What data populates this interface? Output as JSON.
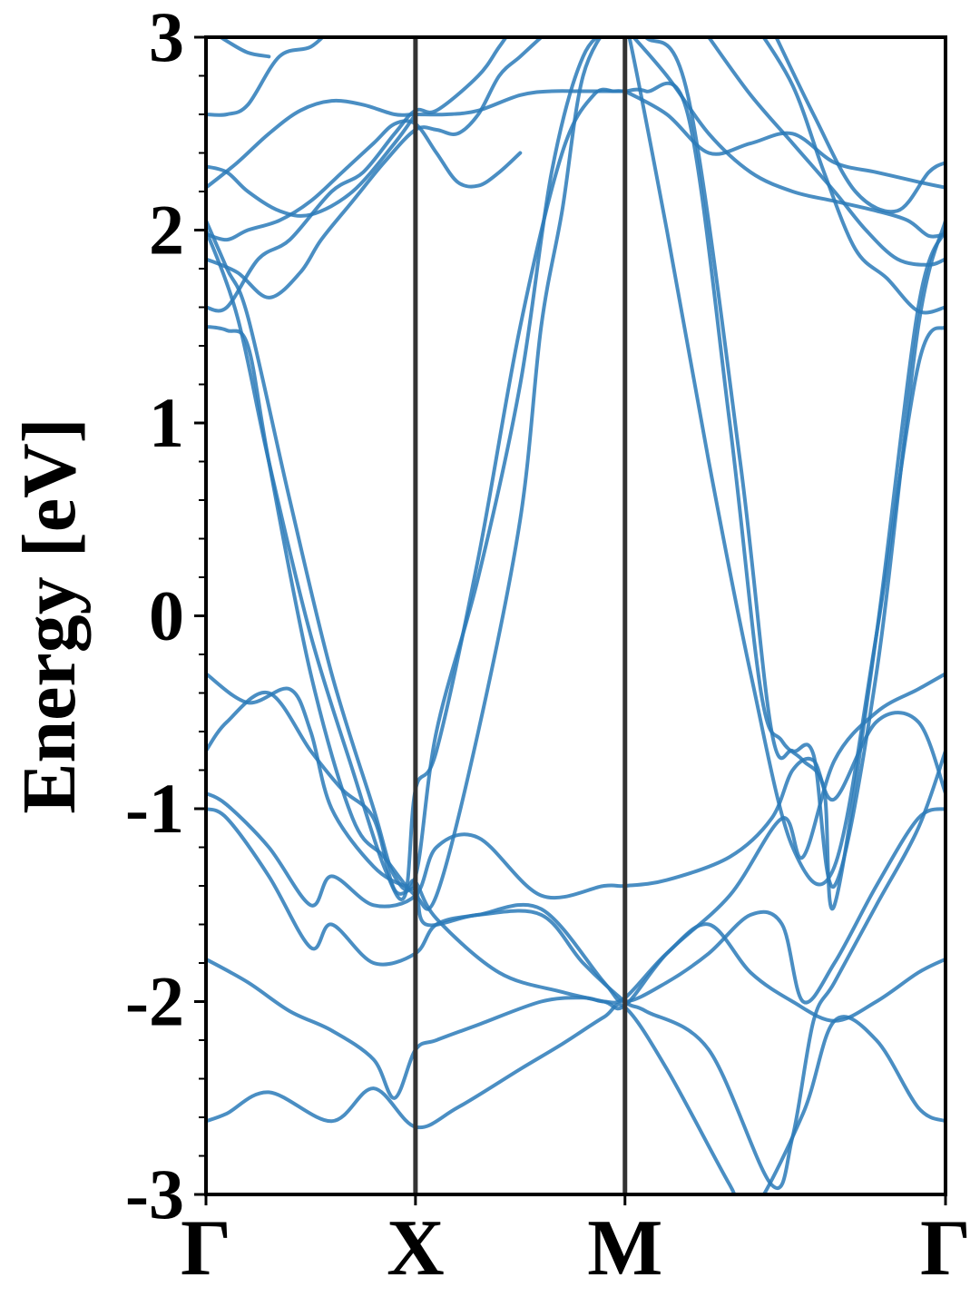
{
  "chart_data": {
    "type": "line",
    "title": "",
    "xlabel": "",
    "ylabel": "Energy [eV]",
    "ylim": [
      -3,
      3
    ],
    "xlim": [
      0,
      3.53
    ],
    "yticks": [
      -3,
      -2,
      -1,
      0,
      1,
      2,
      3
    ],
    "ytick_labels": [
      "-3",
      "-2",
      "-1",
      "0",
      "1",
      "2",
      "3"
    ],
    "minor_ytick_step": 0.2,
    "kpoints": [
      {
        "label": "Γ",
        "x": 0
      },
      {
        "label": "X",
        "x": 1.0
      },
      {
        "label": "M",
        "x": 2.0
      },
      {
        "label": "Γ",
        "x": 3.53
      }
    ],
    "grid": false,
    "legend": "none",
    "colors": {
      "bands": "#2a7ab8",
      "kline": "#333333",
      "axis": "#000000"
    },
    "series": [
      {
        "x": [
          0,
          0.1,
          0.3,
          0.6,
          0.8,
          1.0,
          1.2,
          1.5,
          1.7,
          1.9,
          2.0,
          2.2,
          2.5,
          2.6,
          2.85,
          3.0,
          3.2,
          3.4,
          3.53
        ],
        "y": [
          -2.62,
          -2.58,
          -2.47,
          -2.62,
          -2.45,
          -2.65,
          -2.55,
          -2.35,
          -2.22,
          -2.08,
          -2.03,
          -2.35,
          -2.95,
          -3.1,
          -2.58,
          -2.1,
          -2.2,
          -2.55,
          -2.62
        ]
      },
      {
        "x": [
          0,
          0.2,
          0.4,
          0.6,
          0.8,
          0.9,
          1.0,
          1.1,
          1.3,
          1.6,
          1.8,
          1.9,
          2.0,
          2.2,
          2.4,
          2.6,
          2.8,
          3.0,
          3.2,
          3.4,
          3.53
        ],
        "y": [
          -1.78,
          -1.9,
          -2.05,
          -2.15,
          -2.3,
          -2.5,
          -2.25,
          -2.2,
          -2.12,
          -2.0,
          -1.98,
          -2.0,
          -1.98,
          -1.75,
          -1.6,
          -1.85,
          -2.0,
          -2.1,
          -2.0,
          -1.85,
          -1.78
        ]
      },
      {
        "x": [
          0,
          0.1,
          0.3,
          0.5,
          0.6,
          0.8,
          1.0,
          1.1,
          1.3,
          1.6,
          1.9,
          2.0,
          2.2,
          2.4,
          2.6,
          2.75,
          2.85,
          3.0,
          3.2,
          3.4,
          3.53
        ],
        "y": [
          -1.0,
          -1.05,
          -1.35,
          -1.72,
          -1.6,
          -1.8,
          -1.75,
          -1.6,
          -1.55,
          -1.52,
          -1.9,
          -2.0,
          -1.9,
          -1.75,
          -1.55,
          -1.6,
          -2.0,
          -1.8,
          -1.4,
          -1.05,
          -1.0
        ]
      },
      {
        "x": [
          0,
          0.1,
          0.3,
          0.5,
          0.6,
          0.8,
          1.0,
          1.1,
          1.3,
          1.6,
          1.9,
          2.0,
          2.2,
          2.5,
          2.7,
          2.8,
          2.9,
          3.0,
          3.2,
          3.4,
          3.53
        ],
        "y": [
          -0.92,
          -0.98,
          -1.2,
          -1.5,
          -1.35,
          -1.5,
          -1.45,
          -1.2,
          -1.15,
          -1.45,
          -1.4,
          -1.4,
          -1.37,
          -1.25,
          -1.05,
          -0.8,
          -0.75,
          -0.95,
          -0.55,
          -0.55,
          -0.92
        ]
      },
      {
        "x": [
          0,
          0.2,
          0.4,
          0.5,
          0.6,
          0.8,
          0.95,
          1.0,
          1.1,
          1.4,
          1.7,
          1.9,
          2.0,
          2.2,
          2.5,
          2.75,
          2.85,
          3.0,
          3.2,
          3.4,
          3.53
        ],
        "y": [
          -0.3,
          -0.45,
          -0.38,
          -0.6,
          -1.0,
          -1.3,
          -1.4,
          -1.38,
          -1.57,
          -1.85,
          -1.95,
          -2.0,
          -2.02,
          -1.75,
          -1.45,
          -1.05,
          -1.25,
          -0.75,
          -0.5,
          -0.38,
          -0.3
        ]
      },
      {
        "x": [
          0,
          0.1,
          0.3,
          0.5,
          0.65,
          0.8,
          0.9,
          1.0,
          1.05,
          1.3,
          1.6,
          1.8,
          2.0,
          2.1,
          2.4,
          2.7,
          2.8,
          2.9,
          3.0,
          3.2,
          3.4,
          3.53
        ],
        "y": [
          -0.7,
          -0.55,
          -0.4,
          -0.7,
          -0.9,
          -1.05,
          -1.42,
          -1.42,
          -1.6,
          -1.55,
          -1.55,
          -1.8,
          -2.0,
          -2.05,
          -2.25,
          -2.95,
          -2.7,
          -2.1,
          -1.9,
          -1.5,
          -1.1,
          -0.7
        ]
      },
      {
        "x": [
          0,
          0.15,
          0.3,
          0.5,
          0.7,
          0.85,
          0.95,
          1.0,
          1.1,
          1.3,
          1.5,
          1.7,
          1.85,
          1.95,
          2.0,
          2.1,
          2.3,
          2.5,
          2.65,
          2.75,
          2.85,
          2.95,
          3.0,
          3.2,
          3.4,
          3.53
        ],
        "y": [
          2.0,
          1.55,
          0.8,
          -0.1,
          -0.8,
          -1.3,
          -1.45,
          -0.9,
          -0.7,
          0.3,
          1.5,
          2.4,
          2.7,
          2.72,
          2.72,
          2.72,
          2.6,
          1.0,
          -0.4,
          -0.65,
          -0.75,
          -0.9,
          -1.5,
          -0.1,
          1.6,
          2.0
        ]
      },
      {
        "x": [
          0,
          0.1,
          0.2,
          0.4,
          0.6,
          0.8,
          0.9,
          1.0,
          1.1,
          1.3,
          1.5,
          1.65,
          1.8,
          1.95,
          2.0,
          2.1,
          2.3,
          2.55,
          2.7,
          2.8,
          2.9,
          3.0,
          3.2,
          3.4,
          3.53
        ],
        "y": [
          2.05,
          1.8,
          1.55,
          0.6,
          -0.3,
          -1.0,
          -1.35,
          -1.35,
          -0.6,
          0.2,
          1.2,
          2.3,
          2.9,
          3.05,
          3.05,
          3.0,
          2.7,
          0.8,
          -0.6,
          -0.7,
          -0.72,
          -1.4,
          -0.3,
          1.5,
          2.05
        ]
      },
      {
        "x": [
          0,
          0.1,
          0.2,
          0.3,
          0.5,
          0.7,
          0.85,
          1.0,
          1.1,
          1.3,
          1.5,
          1.6,
          1.7,
          1.8,
          1.95,
          2.0,
          2.2,
          2.4,
          2.6,
          2.8,
          3.0,
          3.2,
          3.4,
          3.53
        ],
        "y": [
          1.5,
          1.48,
          1.4,
          0.8,
          -0.3,
          -1.05,
          -1.25,
          -1.45,
          -1.45,
          -0.6,
          0.5,
          1.5,
          2.1,
          2.8,
          3.1,
          3.1,
          2.0,
          0.8,
          -0.3,
          -1.2,
          -1.3,
          -0.1,
          1.3,
          1.5
        ]
      },
      {
        "x": [
          0,
          0.1,
          0.25,
          0.4,
          0.6,
          0.75,
          0.9,
          1.0,
          1.1,
          1.3,
          1.4,
          1.5,
          1.6,
          1.7
        ],
        "y": [
          1.6,
          1.6,
          1.85,
          1.95,
          2.2,
          2.3,
          2.5,
          2.62,
          2.62,
          2.8,
          2.95,
          3.1,
          3.2,
          3.3
        ]
      },
      {
        "x": [
          0,
          0.15,
          0.3,
          0.45,
          0.55,
          0.7,
          0.85,
          1.0,
          1.1,
          1.2,
          1.3,
          1.4,
          1.5,
          1.6,
          1.7
        ],
        "y": [
          1.85,
          1.78,
          1.65,
          1.78,
          1.95,
          2.15,
          2.35,
          2.52,
          2.52,
          2.5,
          2.6,
          2.8,
          2.9,
          3.0,
          3.1
        ]
      },
      {
        "x": [
          0,
          0.1,
          0.2,
          0.35,
          0.5,
          0.65,
          0.8,
          0.9,
          1.0,
          1.1,
          1.2,
          1.3,
          1.4,
          1.5
        ],
        "y": [
          1.98,
          1.95,
          2.0,
          2.05,
          2.15,
          2.3,
          2.45,
          2.55,
          2.55,
          2.4,
          2.25,
          2.23,
          2.3,
          2.4
        ]
      },
      {
        "x": [
          0,
          0.15,
          0.3,
          0.45,
          0.6,
          0.75,
          0.9,
          1.0,
          1.15,
          1.3,
          1.5,
          1.65,
          1.8,
          2.0
        ],
        "y": [
          2.22,
          2.35,
          2.5,
          2.62,
          2.67,
          2.65,
          2.6,
          2.6,
          2.6,
          2.62,
          2.7,
          2.72,
          2.72,
          2.72
        ]
      },
      {
        "x": [
          0,
          0.1,
          0.2,
          0.35,
          0.5,
          0.7,
          0.9,
          1.0
        ],
        "y": [
          2.33,
          2.3,
          2.2,
          2.1,
          2.08,
          2.2,
          2.45,
          2.6
        ]
      },
      {
        "x": [
          0,
          0.1,
          0.2,
          0.35,
          0.5,
          0.6
        ],
        "y": [
          2.6,
          2.6,
          2.65,
          2.9,
          2.95,
          3.05
        ]
      },
      {
        "x": [
          0,
          0.1,
          0.2,
          0.3
        ],
        "y": [
          3.05,
          2.98,
          2.92,
          2.9
        ]
      },
      {
        "x": [
          2.0,
          2.2,
          2.4,
          2.6,
          2.8,
          3.0,
          3.2,
          3.4,
          3.53
        ],
        "y": [
          2.72,
          2.6,
          2.4,
          2.45,
          2.5,
          2.35,
          2.3,
          2.25,
          2.22
        ]
      },
      {
        "x": [
          2.0,
          2.2,
          2.4,
          2.6,
          2.8,
          3.0,
          3.2,
          3.35,
          3.45,
          3.53
        ],
        "y": [
          3.05,
          2.8,
          2.5,
          2.3,
          2.2,
          2.15,
          2.1,
          2.05,
          1.97,
          1.98
        ]
      },
      {
        "x": [
          2.4,
          2.6,
          2.8,
          3.0,
          3.15,
          3.3,
          3.45,
          3.53
        ],
        "y": [
          3.0,
          2.7,
          2.45,
          2.2,
          2.0,
          1.85,
          1.82,
          1.85
        ]
      },
      {
        "x": [
          2.6,
          2.8,
          2.95,
          3.1,
          3.25,
          3.4,
          3.53
        ],
        "y": [
          3.1,
          2.75,
          2.3,
          1.9,
          1.75,
          1.58,
          1.6
        ]
      },
      {
        "x": [
          2.7,
          2.9,
          3.1,
          3.3,
          3.45,
          3.53
        ],
        "y": [
          3.05,
          2.6,
          2.2,
          2.1,
          2.3,
          2.35
        ]
      }
    ]
  }
}
